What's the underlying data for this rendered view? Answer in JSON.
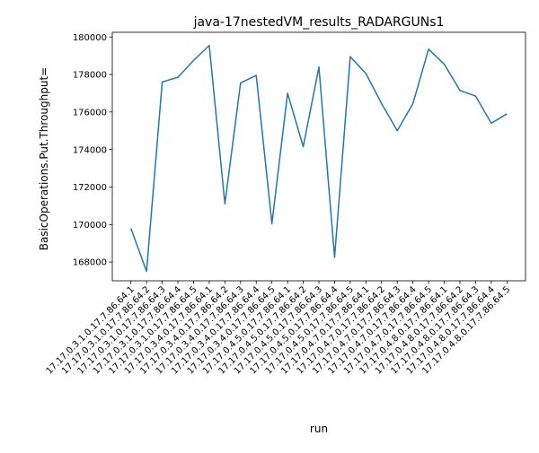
{
  "chart_data": {
    "type": "line",
    "title": "java-17nestedVM_results_RADARGUNs1",
    "xlabel": "run",
    "ylabel": "BasicOperations.Put.Throughput=",
    "ylim": [
      167000,
      180250
    ],
    "yticks": [
      168000,
      170000,
      172000,
      174000,
      176000,
      178000,
      180000
    ],
    "grid": false,
    "categories": [
      "17.17.0.3.1.0.17.7.86.64.1",
      "17.17.0.3.1.0.17.7.86.64.2",
      "17.17.0.3.1.0.17.7.86.64.3",
      "17.17.0.3.1.0.17.7.86.64.4",
      "17.17.0.3.1.0.17.7.86.64.5",
      "17.17.0.3.4.0.17.7.86.64.1",
      "17.17.0.3.4.0.17.7.86.64.2",
      "17.17.0.3.4.0.17.7.86.64.3",
      "17.17.0.3.4.0.17.7.86.64.4",
      "17.17.0.3.4.0.17.7.86.64.5",
      "17.17.0.4.5.0.17.7.86.64.1",
      "17.17.0.4.5.0.17.7.86.64.2",
      "17.17.0.4.5.0.17.7.86.64.3",
      "17.17.0.4.5.0.17.7.86.64.4",
      "17.17.0.4.5.0.17.7.86.64.5",
      "17.17.0.4.7.0.17.7.86.64.1",
      "17.17.0.4.7.0.17.7.86.64.2",
      "17.17.0.4.7.0.17.7.86.64.3",
      "17.17.0.4.7.0.17.7.86.64.4",
      "17.17.0.4.7.0.17.7.86.64.5",
      "17.17.0.4.8.0.17.7.86.64.1",
      "17.17.0.4.8.0.17.7.86.64.2",
      "17.17.0.4.8.0.17.7.86.64.3",
      "17.17.0.4.8.0.17.7.86.64.4",
      "17.17.0.4.8.0.17.7.86.64.5"
    ],
    "series": [
      {
        "color": "#1f77b4",
        "values": [
          169800,
          167500,
          177600,
          177850,
          178750,
          179550,
          171100,
          177550,
          177950,
          170050,
          177000,
          174150,
          178400,
          168250,
          178950,
          178050,
          176450,
          175000,
          176450,
          179350,
          178550,
          177150,
          176850,
          175400,
          175900
        ]
      }
    ]
  }
}
